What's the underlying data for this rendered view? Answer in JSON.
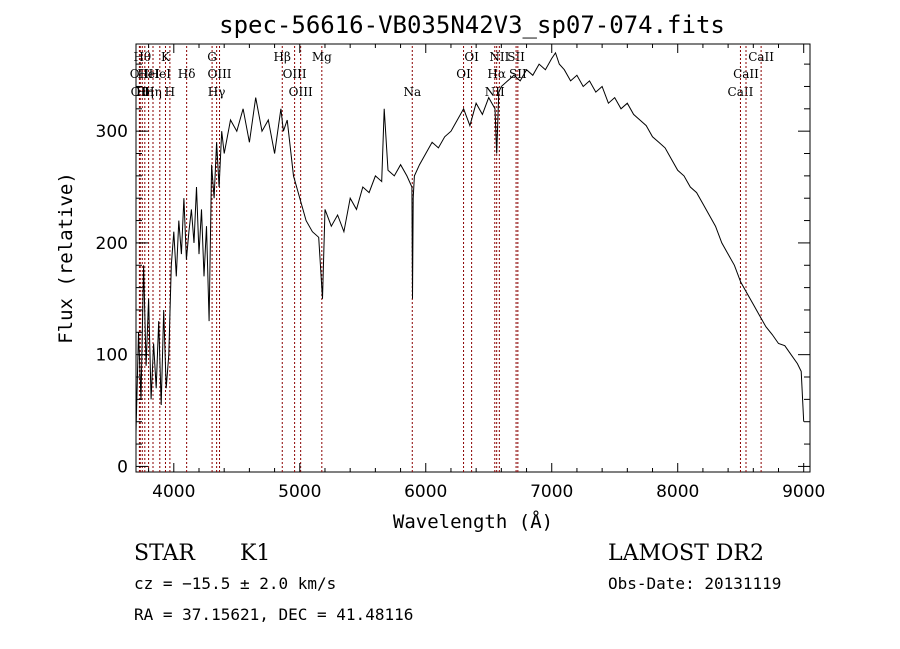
{
  "chart_data": {
    "type": "line",
    "title": "spec-56616-VB035N42V3_sp07-074.fits",
    "xlabel": "Wavelength (Å)",
    "ylabel": "Flux (relative)",
    "xlim": [
      3700,
      9050
    ],
    "ylim": [
      -5,
      378
    ],
    "x_ticks": [
      4000,
      5000,
      6000,
      7000,
      8000,
      9000
    ],
    "y_ticks": [
      0,
      100,
      200,
      300
    ],
    "x_tick_labels": [
      "4000",
      "5000",
      "6000",
      "7000",
      "8000",
      "9000"
    ],
    "y_tick_labels": [
      "0",
      "100",
      "200",
      "300"
    ],
    "line_color": "#000000",
    "marker_color": "#8b0000",
    "series": [
      {
        "x": [
          3700,
          3720,
          3740,
          3760,
          3780,
          3800,
          3820,
          3840,
          3860,
          3880,
          3900,
          3920,
          3940,
          3960,
          3980,
          4000,
          4020,
          4040,
          4060,
          4080,
          4100,
          4120,
          4140,
          4160,
          4180,
          4200,
          4220,
          4240,
          4260,
          4280,
          4300,
          4320,
          4340,
          4360,
          4380,
          4400,
          4450,
          4500,
          4550,
          4600,
          4650,
          4700,
          4750,
          4800,
          4850,
          4870,
          4900,
          4950,
          5000,
          5050,
          5100,
          5150,
          5180,
          5200,
          5250,
          5300,
          5350,
          5400,
          5450,
          5500,
          5550,
          5600,
          5650,
          5670,
          5700,
          5750,
          5800,
          5850,
          5890,
          5895,
          5900,
          5910,
          5950,
          6000,
          6050,
          6100,
          6150,
          6200,
          6250,
          6300,
          6350,
          6400,
          6450,
          6500,
          6550,
          6563,
          6580,
          6600,
          6650,
          6700,
          6750,
          6800,
          6850,
          6900,
          6950,
          7000,
          7030,
          7060,
          7100,
          7150,
          7200,
          7250,
          7300,
          7350,
          7400,
          7450,
          7500,
          7550,
          7600,
          7650,
          7700,
          7750,
          7800,
          7850,
          7900,
          7950,
          8000,
          8050,
          8100,
          8150,
          8200,
          8250,
          8300,
          8350,
          8400,
          8450,
          8500,
          8550,
          8600,
          8650,
          8700,
          8750,
          8800,
          8850,
          8900,
          8950,
          8980,
          9000
        ],
        "y": [
          30,
          120,
          60,
          180,
          90,
          150,
          60,
          110,
          70,
          130,
          55,
          140,
          70,
          100,
          180,
          210,
          170,
          220,
          190,
          240,
          185,
          210,
          230,
          200,
          250,
          190,
          230,
          170,
          215,
          130,
          270,
          240,
          290,
          250,
          300,
          280,
          310,
          300,
          320,
          290,
          330,
          300,
          310,
          280,
          320,
          300,
          310,
          260,
          240,
          220,
          210,
          205,
          150,
          230,
          215,
          225,
          210,
          240,
          230,
          250,
          245,
          260,
          255,
          320,
          265,
          260,
          270,
          260,
          250,
          150,
          240,
          260,
          270,
          280,
          290,
          285,
          295,
          300,
          310,
          320,
          305,
          325,
          315,
          330,
          320,
          280,
          335,
          340,
          345,
          350,
          345,
          355,
          350,
          360,
          355,
          365,
          370,
          360,
          355,
          345,
          350,
          340,
          345,
          335,
          340,
          325,
          330,
          320,
          325,
          315,
          310,
          305,
          295,
          290,
          285,
          275,
          265,
          260,
          250,
          245,
          235,
          225,
          215,
          200,
          190,
          180,
          165,
          155,
          145,
          135,
          125,
          118,
          110,
          108,
          100,
          92,
          85,
          40
        ]
      }
    ],
    "line_markers": [
      {
        "x": 3727,
        "label": "OII",
        "row": 2
      },
      {
        "x": 3734,
        "label": "OII",
        "row": 3
      },
      {
        "x": 3750,
        "label": "Hθ",
        "row": 1
      },
      {
        "x": 3770,
        "label": "Hη",
        "row": 3
      },
      {
        "x": 3800,
        "label": "HeI",
        "row": 2
      },
      {
        "x": 3835,
        "label": "Hη",
        "row": 3
      },
      {
        "x": 3889,
        "label": "HeI",
        "row": 2
      },
      {
        "x": 3934,
        "label": "K",
        "row": 1
      },
      {
        "x": 3969,
        "label": "H",
        "row": 3
      },
      {
        "x": 4102,
        "label": "Hδ",
        "row": 2
      },
      {
        "x": 4304,
        "label": "G",
        "row": 1
      },
      {
        "x": 4340,
        "label": "Hγ",
        "row": 3
      },
      {
        "x": 4363,
        "label": "OIII",
        "row": 2
      },
      {
        "x": 4861,
        "label": "Hβ",
        "row": 1
      },
      {
        "x": 4959,
        "label": "OIII",
        "row": 2
      },
      {
        "x": 5007,
        "label": "OIII",
        "row": 3
      },
      {
        "x": 5175,
        "label": "Mg",
        "row": 1
      },
      {
        "x": 5893,
        "label": "Na",
        "row": 3
      },
      {
        "x": 6300,
        "label": "OI",
        "row": 2
      },
      {
        "x": 6364,
        "label": "OI",
        "row": 1
      },
      {
        "x": 6548,
        "label": "NII",
        "row": 3
      },
      {
        "x": 6563,
        "label": "Hα",
        "row": 2
      },
      {
        "x": 6584,
        "label": "NII",
        "row": 1
      },
      {
        "x": 6717,
        "label": "SII",
        "row": 1
      },
      {
        "x": 6731,
        "label": "SII",
        "row": 2
      },
      {
        "x": 8498,
        "label": "CaII",
        "row": 3
      },
      {
        "x": 8542,
        "label": "CaII",
        "row": 2
      },
      {
        "x": 8662,
        "label": "CaII",
        "row": 1
      }
    ]
  },
  "footer": {
    "class": "STAR",
    "subclass": "K1",
    "survey": "LAMOST DR2",
    "cz": "cz = −15.5 ± 2.0 km/s",
    "obs_date": "Obs-Date: 20131119",
    "coords": "RA =  37.15621, DEC =  41.48116"
  }
}
